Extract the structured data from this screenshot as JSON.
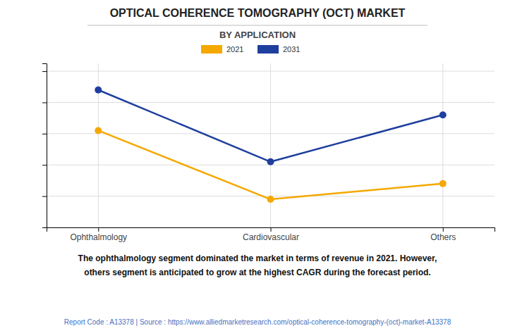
{
  "chart_data": {
    "type": "line",
    "title": "OPTICAL COHERENCE TOMOGRAPHY (OCT) MARKET",
    "subtitle": "BY APPLICATION",
    "categories": [
      "Ophthalmology",
      "Cardiovascular",
      "Others"
    ],
    "series": [
      {
        "name": "2021",
        "color": "#F5A800",
        "values": [
          0.62,
          0.18,
          0.28
        ]
      },
      {
        "name": "2031",
        "color": "#1F3F9E",
        "values": [
          0.88,
          0.42,
          0.72
        ]
      }
    ],
    "ylim": [
      0.0,
      1.05
    ],
    "yticks": [
      0.2,
      0.4,
      0.6,
      0.8,
      1.0
    ],
    "grid": true,
    "tick_labels": "x",
    "marker": "circle",
    "legend": "top",
    "annotations": [
      "The ophthalmology segment dominated the market in terms of revenue in 2021. However,\nothers segment is anticipated to grow at the highest CAGR during the forecast period.",
      "Report Code : A13378  |  Source : https://www.alliedmarketresearch.com/optical-coherence-tomography-(oct)-market-A13378"
    ]
  }
}
